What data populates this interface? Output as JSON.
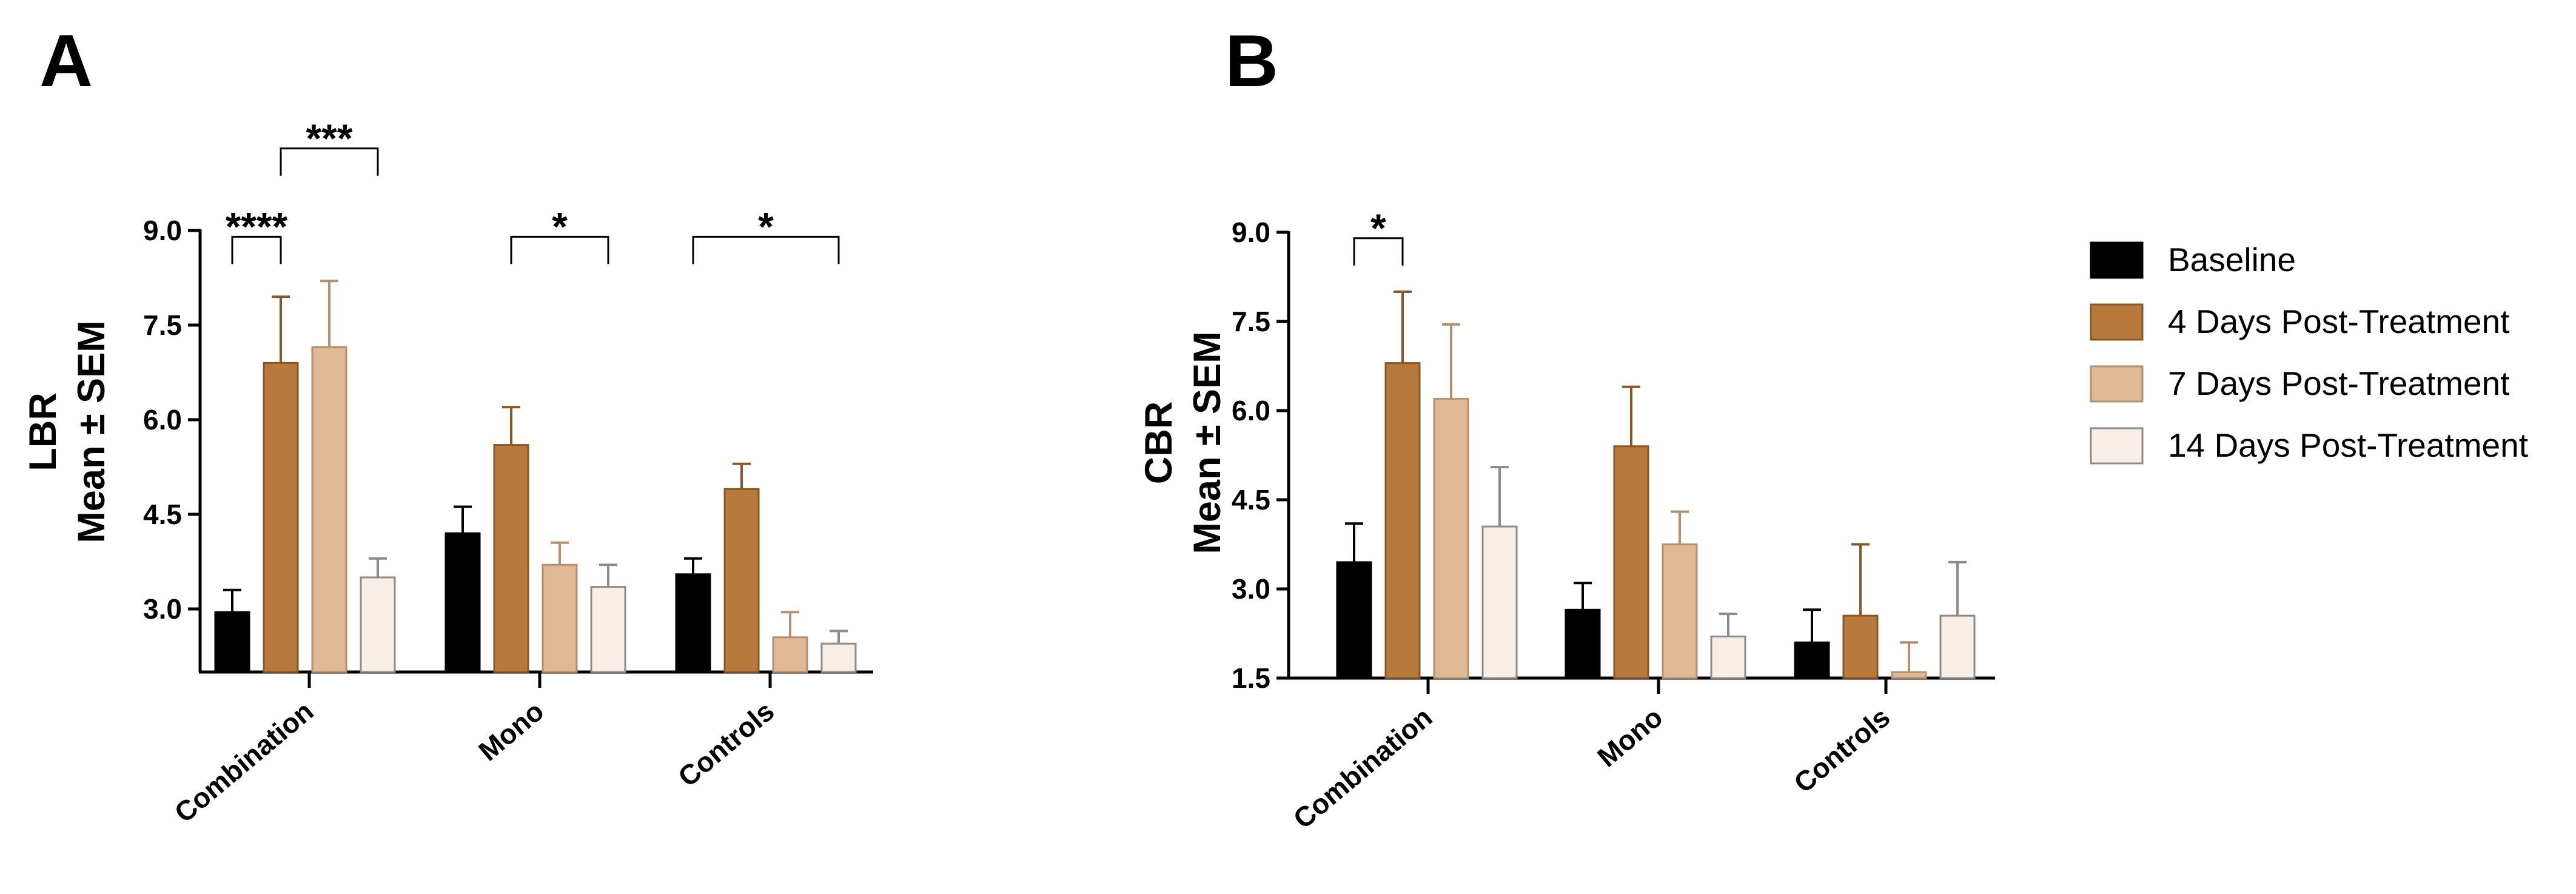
{
  "legend": [
    {
      "label": "Baseline",
      "color": "#000000"
    },
    {
      "label": "4 Days Post-Treatment",
      "color": "#b8793d"
    },
    {
      "label": "7 Days Post-Treatment",
      "color": "#dfb895"
    },
    {
      "label": "14 Days Post-Treatment",
      "color": "#f7eee8"
    }
  ],
  "chart_data": [
    {
      "panel": "A",
      "type": "bar",
      "title": "",
      "xlabel": "",
      "ylabel": "LBR",
      "ylabel2": "Mean ± SEM",
      "ylim": [
        2.0,
        9.0
      ],
      "yticks": [
        "3.0",
        "4.5",
        "6.0",
        "7.5",
        "9.0"
      ],
      "ytick_values": [
        3.0,
        4.5,
        6.0,
        7.5,
        9.0
      ],
      "categories": [
        "Combination",
        "Mono",
        "Controls"
      ],
      "series": [
        {
          "name": "Baseline",
          "values": [
            2.95,
            4.2,
            3.55
          ],
          "errors": [
            0.35,
            0.42,
            0.25
          ]
        },
        {
          "name": "4 Days Post-Treatment",
          "values": [
            6.9,
            5.6,
            4.9
          ],
          "errors": [
            1.05,
            0.6,
            0.4
          ]
        },
        {
          "name": "7 Days Post-Treatment",
          "values": [
            7.15,
            3.7,
            2.55
          ],
          "errors": [
            1.05,
            0.35,
            0.4
          ]
        },
        {
          "name": "14 Days Post-Treatment",
          "values": [
            3.5,
            3.35,
            2.45
          ],
          "errors": [
            0.3,
            0.35,
            0.2
          ]
        }
      ],
      "significance": [
        {
          "label": "****",
          "category": 0,
          "from_series": 0,
          "to_series": 1,
          "level": 8.9
        },
        {
          "label": "***",
          "category": 0,
          "from_series": 1,
          "to_series": 3,
          "level": 10.3
        },
        {
          "label": "*",
          "category": 1,
          "from_series": 1,
          "to_series": 3,
          "level": 8.9
        },
        {
          "label": "*",
          "category": 2,
          "from_series": 0,
          "to_series": 3,
          "level": 8.9
        }
      ]
    },
    {
      "panel": "B",
      "type": "bar",
      "title": "",
      "xlabel": "",
      "ylabel": "CBR",
      "ylabel2": "Mean ± SEM",
      "ylim": [
        1.5,
        9.0
      ],
      "yticks": [
        "1.5",
        "3.0",
        "4.5",
        "6.0",
        "7.5",
        "9.0"
      ],
      "ytick_values": [
        1.5,
        3.0,
        4.5,
        6.0,
        7.5,
        9.0
      ],
      "categories": [
        "Combination",
        "Mono",
        "Controls"
      ],
      "series": [
        {
          "name": "Baseline",
          "values": [
            3.45,
            2.65,
            2.1
          ],
          "errors": [
            0.65,
            0.45,
            0.55
          ]
        },
        {
          "name": "4 Days Post-Treatment",
          "values": [
            6.8,
            5.4,
            2.55
          ],
          "errors": [
            1.2,
            1.0,
            1.2
          ]
        },
        {
          "name": "7 Days Post-Treatment",
          "values": [
            6.2,
            3.75,
            1.6
          ],
          "errors": [
            1.25,
            0.55,
            0.5
          ]
        },
        {
          "name": "14 Days Post-Treatment",
          "values": [
            4.05,
            2.2,
            2.55
          ],
          "errors": [
            1.0,
            0.38,
            0.9
          ]
        }
      ],
      "significance": [
        {
          "label": "*",
          "category": 0,
          "from_series": 0,
          "to_series": 1,
          "level": 8.9
        }
      ]
    }
  ]
}
